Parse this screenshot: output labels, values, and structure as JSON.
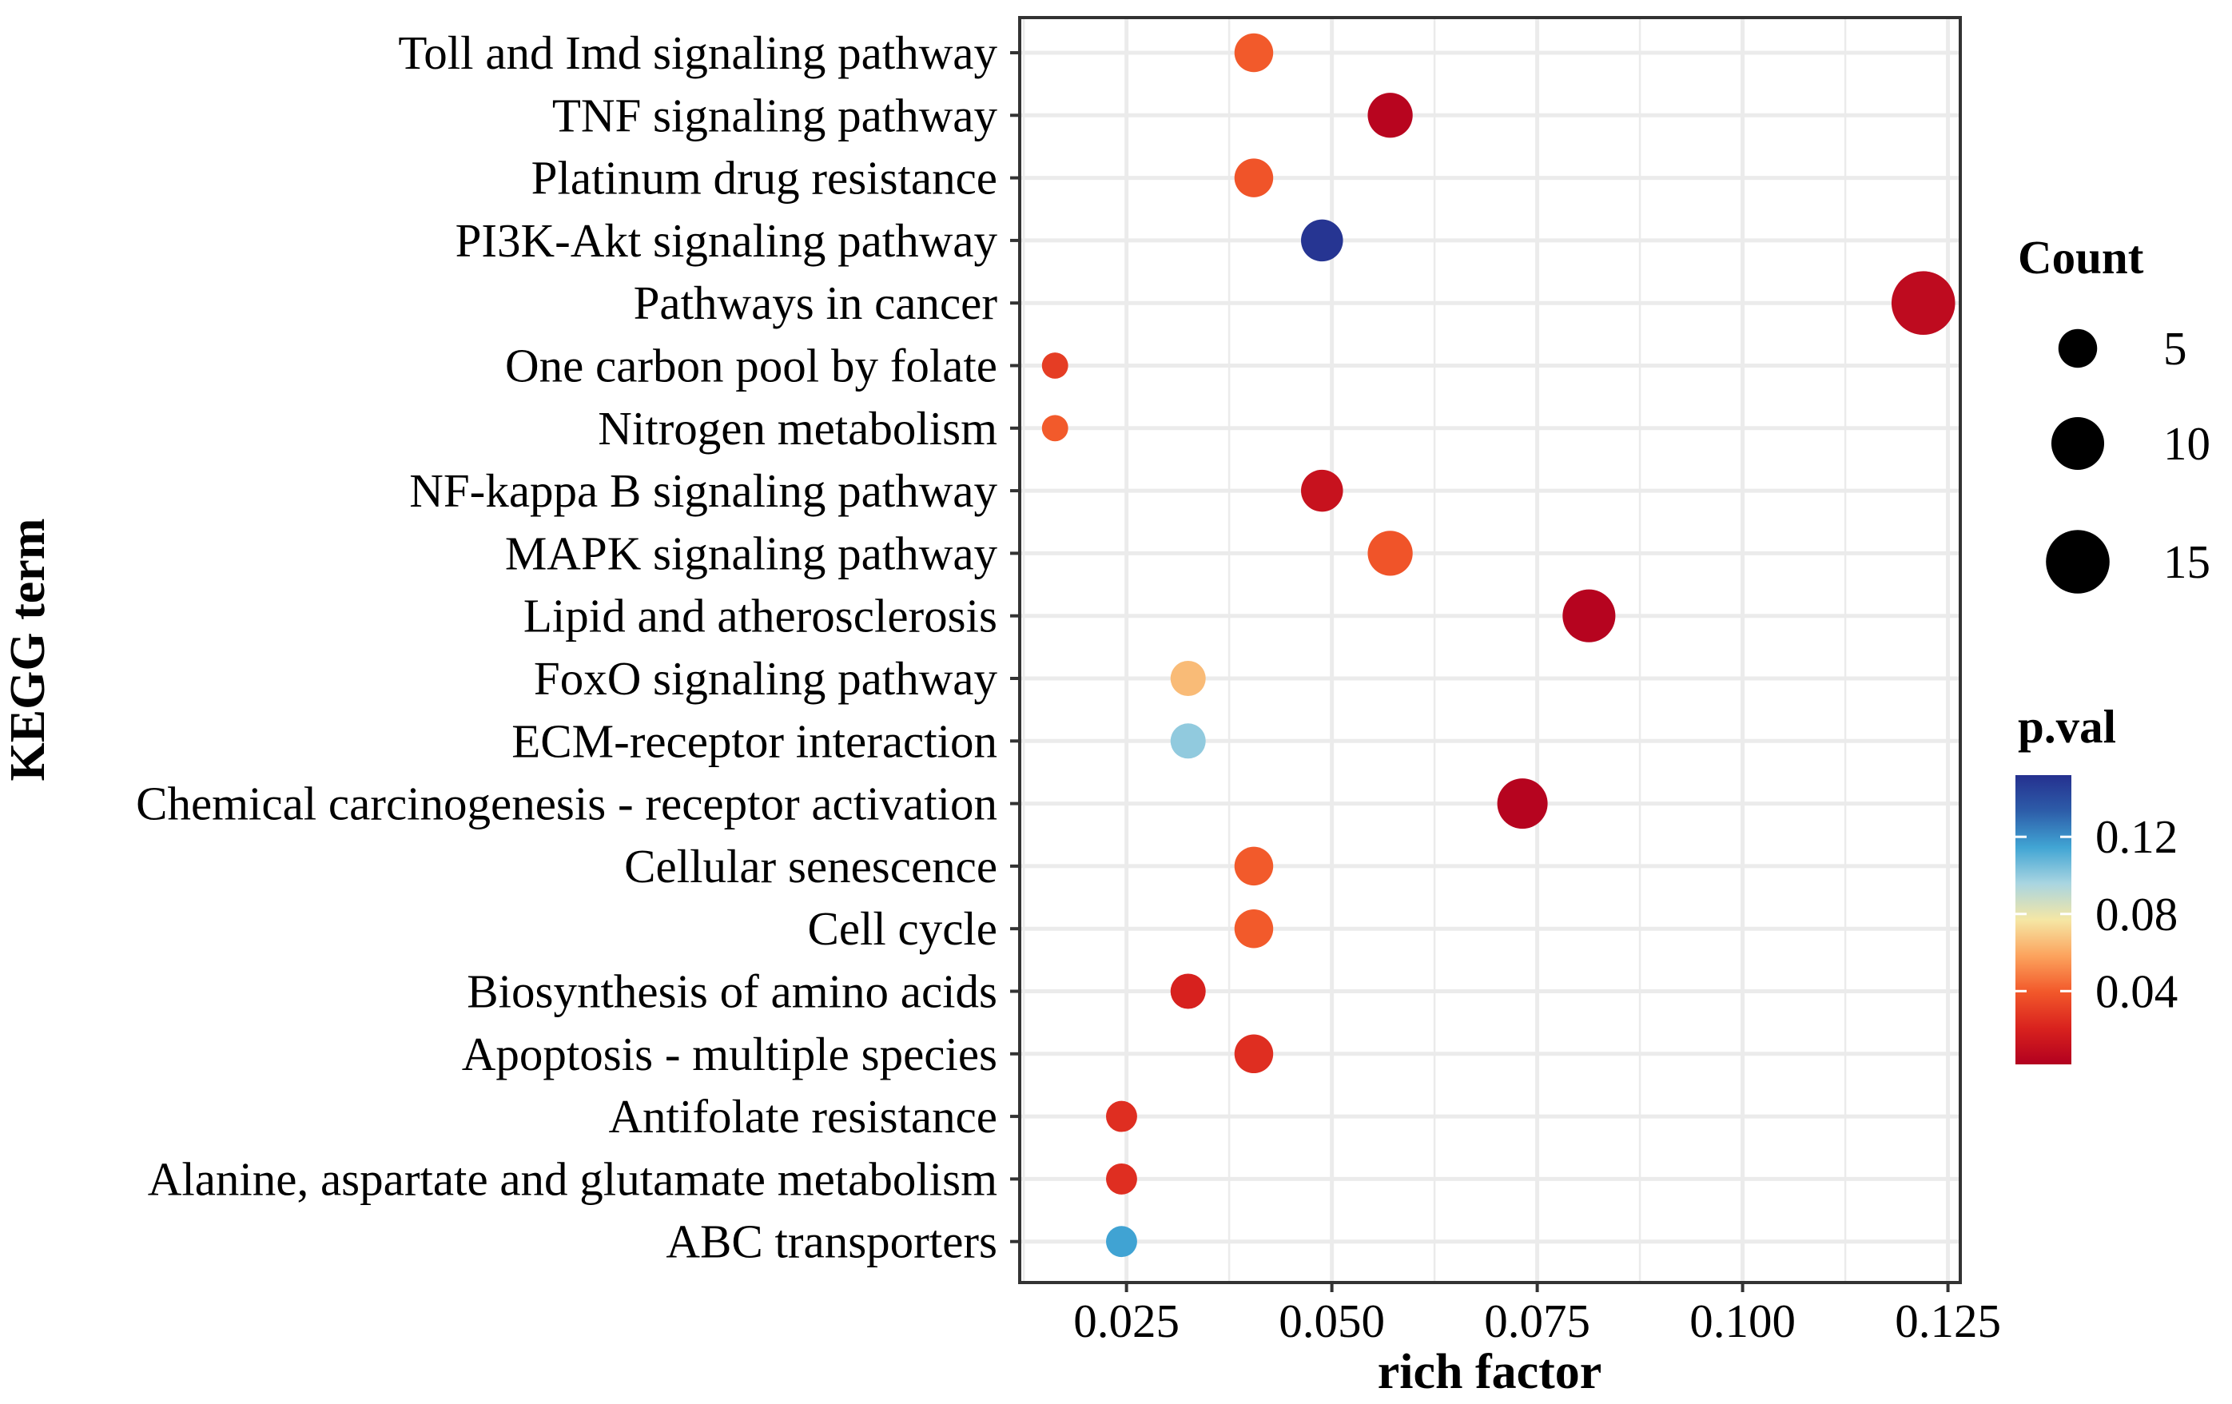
{
  "chart_data": {
    "type": "scatter",
    "title": "",
    "xlabel": "rich factor",
    "ylabel": "KEGG term",
    "xlim": [
      0.012,
      0.1265
    ],
    "xticks": [
      0.025,
      0.05,
      0.075,
      0.1,
      0.125
    ],
    "xtick_labels": [
      "0.025",
      "0.050",
      "0.075",
      "0.100",
      "0.125"
    ],
    "grid": true,
    "points": [
      {
        "term": "Toll and Imd signaling pathway",
        "rich_factor": 0.0405,
        "count": 5,
        "p_val": 0.04
      },
      {
        "term": "TNF signaling pathway",
        "rich_factor": 0.0571,
        "count": 7,
        "p_val": 0.005
      },
      {
        "term": "Platinum drug resistance",
        "rich_factor": 0.0405,
        "count": 5,
        "p_val": 0.038
      },
      {
        "term": "PI3K-Akt signaling pathway",
        "rich_factor": 0.0488,
        "count": 6,
        "p_val": 0.15
      },
      {
        "term": "Pathways in cancer",
        "rich_factor": 0.122,
        "count": 15,
        "p_val": 0.008
      },
      {
        "term": "One carbon pool by folate",
        "rich_factor": 0.0163,
        "count": 2,
        "p_val": 0.03
      },
      {
        "term": "Nitrogen metabolism",
        "rich_factor": 0.0163,
        "count": 2,
        "p_val": 0.04
      },
      {
        "term": "NF-kappa B signaling pathway",
        "rich_factor": 0.0488,
        "count": 6,
        "p_val": 0.012
      },
      {
        "term": "MAPK signaling pathway",
        "rich_factor": 0.0571,
        "count": 7,
        "p_val": 0.038
      },
      {
        "term": "Lipid and atherosclerosis",
        "rich_factor": 0.0813,
        "count": 10,
        "p_val": 0.004
      },
      {
        "term": "FoxO signaling pathway",
        "rich_factor": 0.0325,
        "count": 4,
        "p_val": 0.065
      },
      {
        "term": "ECM-receptor interaction",
        "rich_factor": 0.0325,
        "count": 4,
        "p_val": 0.1
      },
      {
        "term": "Chemical carcinogenesis - receptor activation",
        "rich_factor": 0.0732,
        "count": 9,
        "p_val": 0.004
      },
      {
        "term": "Cellular senescence",
        "rich_factor": 0.0405,
        "count": 5,
        "p_val": 0.04
      },
      {
        "term": "Cell cycle",
        "rich_factor": 0.0405,
        "count": 5,
        "p_val": 0.04
      },
      {
        "term": "Biosynthesis of amino acids",
        "rich_factor": 0.0325,
        "count": 4,
        "p_val": 0.02
      },
      {
        "term": "Apoptosis - multiple species",
        "rich_factor": 0.0405,
        "count": 5,
        "p_val": 0.025
      },
      {
        "term": "Antifolate resistance",
        "rich_factor": 0.0244,
        "count": 3,
        "p_val": 0.025
      },
      {
        "term": "Alanine, aspartate and glutamate metabolism",
        "rich_factor": 0.0244,
        "count": 3,
        "p_val": 0.025
      },
      {
        "term": "ABC transporters",
        "rich_factor": 0.0244,
        "count": 3,
        "p_val": 0.115
      }
    ],
    "legend_size": {
      "title": "Count",
      "values": [
        5,
        10,
        15
      ],
      "labels": [
        "5",
        "10",
        "15"
      ]
    },
    "legend_color": {
      "title": "p.val",
      "min": 0.002,
      "max": 0.152,
      "ticks": [
        0.04,
        0.08,
        0.12
      ],
      "tick_labels": [
        "0.04",
        "0.08",
        "0.12"
      ],
      "palette": [
        "#B2001F",
        "#D9221E",
        "#F2582A",
        "#FCA35D",
        "#F5E7A5",
        "#A9D5E1",
        "#41A5D4",
        "#2D5DA9",
        "#25308F"
      ]
    },
    "colors": {
      "grid": "#EBEBEB",
      "axis": "#333333",
      "legend_key": "#000000"
    }
  }
}
